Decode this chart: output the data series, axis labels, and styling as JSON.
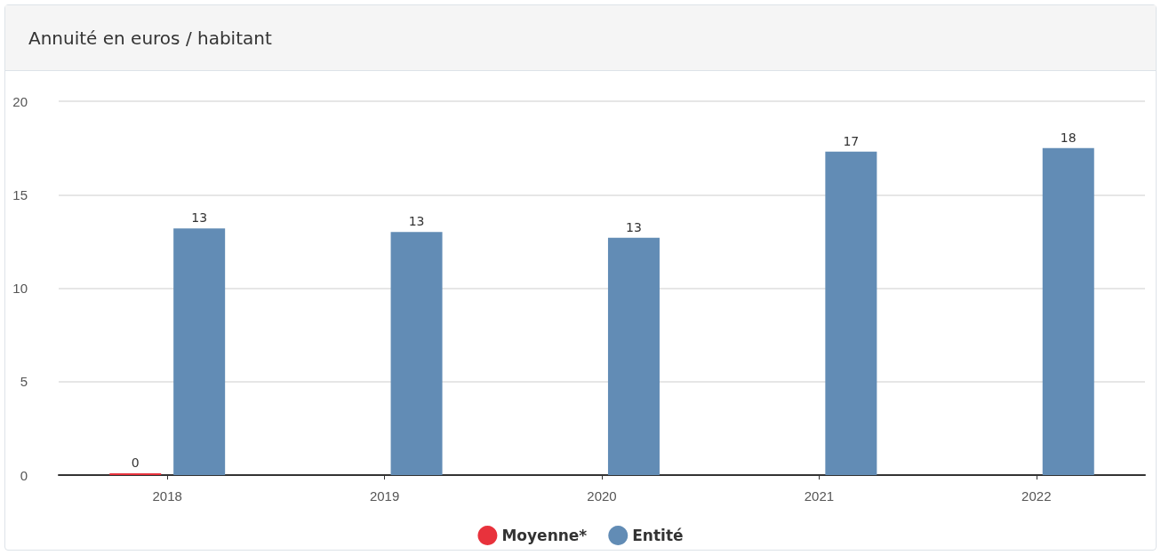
{
  "chart_data": {
    "type": "bar",
    "title": "Annuité en euros / habitant",
    "categories": [
      "2018",
      "2019",
      "2020",
      "2021",
      "2022"
    ],
    "series": [
      {
        "name": "Moyenne*",
        "color": "#e8323c",
        "values": [
          0,
          null,
          null,
          null,
          null
        ],
        "value_labels": [
          "0",
          null,
          null,
          null,
          null
        ]
      },
      {
        "name": "Entité",
        "color": "#628cb5",
        "values": [
          13.2,
          13.0,
          12.7,
          17.3,
          17.5
        ],
        "value_labels": [
          "13",
          "13",
          "13",
          "17",
          "18"
        ]
      }
    ],
    "ylim": [
      0,
      20
    ],
    "yticks": [
      0,
      5,
      10,
      15,
      20
    ],
    "grid": "y",
    "legend": "bottom"
  }
}
